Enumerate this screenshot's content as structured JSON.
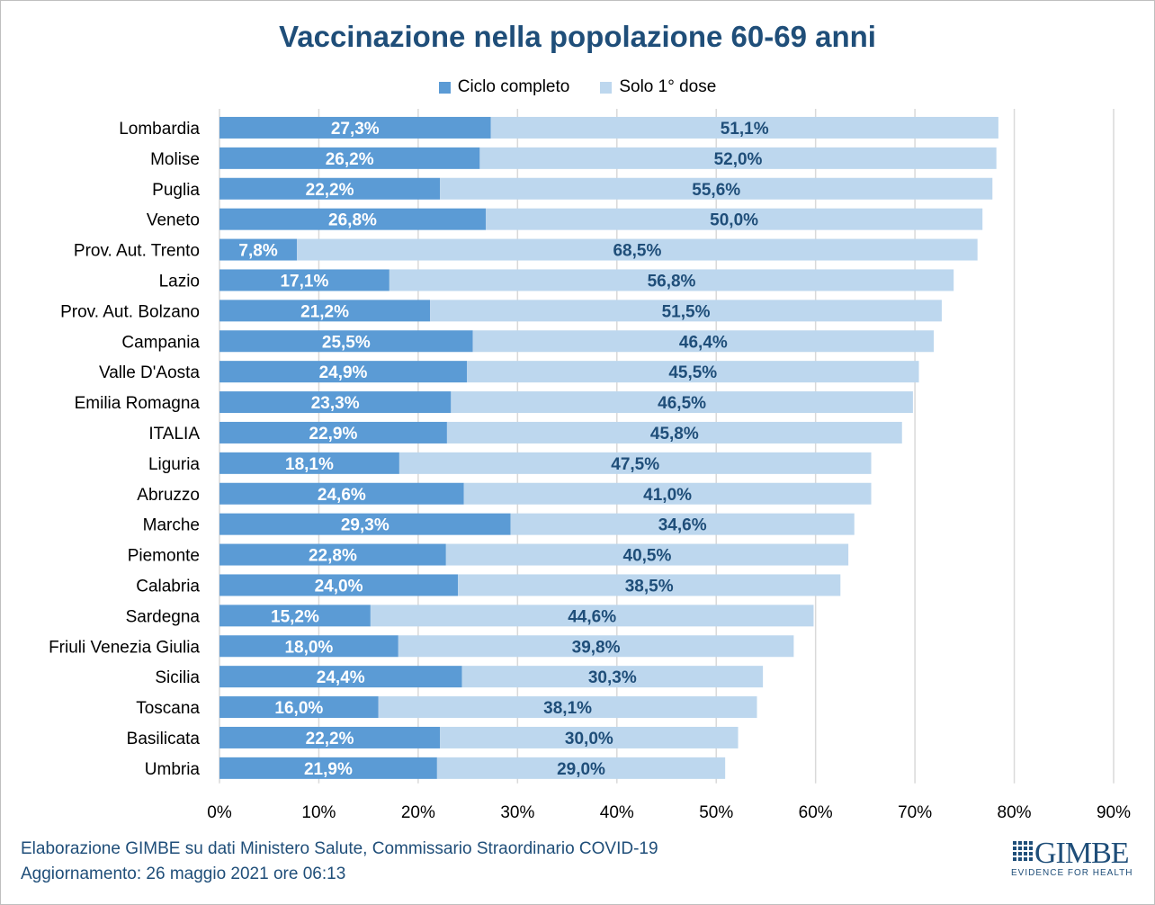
{
  "chart_data": {
    "type": "bar",
    "orientation": "horizontal",
    "stacked": true,
    "title": "Vaccinazione nella popolazione 60-69 anni",
    "xlabel": "",
    "ylabel": "",
    "xlim": [
      0,
      90
    ],
    "x_ticks": [
      "0%",
      "10%",
      "20%",
      "30%",
      "40%",
      "50%",
      "60%",
      "70%",
      "80%",
      "90%"
    ],
    "grid": "vertical",
    "legend_position": "top",
    "categories": [
      "Lombardia",
      "Molise",
      "Puglia",
      "Veneto",
      "Prov. Aut. Trento",
      "Lazio",
      "Prov. Aut. Bolzano",
      "Campania",
      "Valle D'Aosta",
      "Emilia Romagna",
      "ITALIA",
      "Liguria",
      "Abruzzo",
      "Marche",
      "Piemonte",
      "Calabria",
      "Sardegna",
      "Friuli Venezia Giulia",
      "Sicilia",
      "Toscana",
      "Basilicata",
      "Umbria"
    ],
    "series": [
      {
        "name": "Ciclo completo",
        "color": "#5b9bd5",
        "label_color": "#ffffff",
        "values": [
          27.3,
          26.2,
          22.2,
          26.8,
          7.8,
          17.1,
          21.2,
          25.5,
          24.9,
          23.3,
          22.9,
          18.1,
          24.6,
          29.3,
          22.8,
          24.0,
          15.2,
          18.0,
          24.4,
          16.0,
          22.2,
          21.9
        ],
        "labels": [
          "27,3%",
          "26,2%",
          "22,2%",
          "26,8%",
          "7,8%",
          "17,1%",
          "21,2%",
          "25,5%",
          "24,9%",
          "23,3%",
          "22,9%",
          "18,1%",
          "24,6%",
          "29,3%",
          "22,8%",
          "24,0%",
          "15,2%",
          "18,0%",
          "24,4%",
          "16,0%",
          "22,2%",
          "21,9%"
        ]
      },
      {
        "name": "Solo 1° dose",
        "color": "#bdd7ee",
        "label_color": "#1f4e79",
        "values": [
          51.1,
          52.0,
          55.6,
          50.0,
          68.5,
          56.8,
          51.5,
          46.4,
          45.5,
          46.5,
          45.8,
          47.5,
          41.0,
          34.6,
          40.5,
          38.5,
          44.6,
          39.8,
          30.3,
          38.1,
          30.0,
          29.0
        ],
        "labels": [
          "51,1%",
          "52,0%",
          "55,6%",
          "50,0%",
          "68,5%",
          "56,8%",
          "51,5%",
          "46,4%",
          "45,5%",
          "46,5%",
          "45,8%",
          "47,5%",
          "41,0%",
          "34,6%",
          "40,5%",
          "38,5%",
          "44,6%",
          "39,8%",
          "30,3%",
          "38,1%",
          "30,0%",
          "29,0%"
        ]
      }
    ]
  },
  "footer": {
    "source": "Elaborazione GIMBE su dati Ministero Salute, Commissario Straordinario COVID-19",
    "updated": "Aggiornamento: 26 maggio 2021 ore 06:13"
  },
  "logo": {
    "word": "GIMBE",
    "tagline": "EVIDENCE FOR HEALTH"
  }
}
